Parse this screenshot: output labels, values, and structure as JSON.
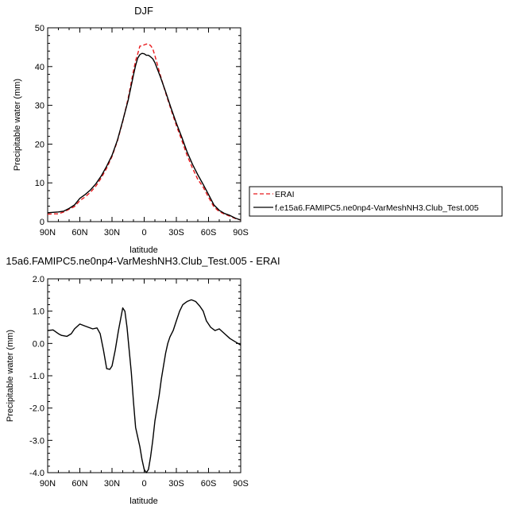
{
  "chart_data": [
    {
      "type": "line",
      "title": "DJF",
      "xlabel": "latitude",
      "ylabel": "Precipitable water (mm)",
      "x_ticks": [
        "90N",
        "60N",
        "30N",
        "0",
        "30S",
        "60S",
        "90S"
      ],
      "y_ticks": [
        "0",
        "10",
        "20",
        "30",
        "40",
        "50"
      ],
      "xlim": [
        90,
        -90
      ],
      "ylim": [
        0,
        50
      ],
      "grid": false,
      "legend": "right",
      "x": [
        90,
        85,
        80,
        75,
        70,
        65,
        60,
        55,
        50,
        45,
        40,
        35,
        30,
        25,
        20,
        15,
        10,
        8,
        6,
        4,
        2,
        0,
        -2,
        -4,
        -6,
        -8,
        -10,
        -15,
        -20,
        -25,
        -30,
        -35,
        -40,
        -45,
        -50,
        -55,
        -60,
        -65,
        -70,
        -75,
        -80,
        -85,
        -90
      ],
      "series": [
        {
          "name": "ERAI",
          "color": "#e8191c",
          "dash": true,
          "values": [
            1.9,
            2.0,
            2.0,
            2.5,
            3.2,
            3.9,
            5.4,
            6.4,
            7.6,
            9.2,
            11.3,
            13.8,
            16.8,
            20.8,
            25.8,
            31.8,
            38.9,
            41.5,
            43.3,
            45.3,
            45.3,
            45.6,
            45.8,
            45.8,
            45.4,
            44.6,
            42.8,
            37.8,
            33.2,
            28.9,
            24.8,
            21.0,
            17.1,
            13.8,
            10.9,
            8.9,
            6.3,
            3.8,
            2.6,
            1.9,
            1.4,
            0.8,
            0.4
          ]
        },
        {
          "name": "f.e15a6.FAMIPC5.ne0np4-VarMeshNH3.Club_Test.005",
          "color": "#000000",
          "dash": false,
          "values": [
            2.3,
            2.4,
            2.5,
            2.7,
            3.4,
            4.3,
            6.0,
            7.0,
            8.2,
            9.8,
            11.8,
            14.3,
            17.1,
            21.0,
            26.0,
            31.3,
            37.8,
            40.3,
            42.2,
            43.1,
            43.4,
            43.3,
            42.9,
            42.9,
            42.5,
            42.0,
            41.0,
            37.4,
            33.5,
            29.3,
            25.4,
            21.8,
            18.0,
            14.8,
            12.1,
            9.6,
            7.0,
            4.3,
            2.9,
            2.1,
            1.6,
            0.9,
            0.4
          ]
        }
      ]
    },
    {
      "type": "line",
      "title": "15a6.FAMIPC5.ne0np4-VarMeshNH3.Club_Test.005 - ERAI",
      "xlabel": "latitude",
      "ylabel": "Precipitable water (mm)",
      "x_ticks": [
        "90N",
        "60N",
        "30N",
        "0",
        "30S",
        "60S",
        "90S"
      ],
      "y_ticks": [
        "-4.0",
        "-3.0",
        "-2.0",
        "-1.0",
        "0.0",
        "1.0",
        "2.0"
      ],
      "xlim": [
        90,
        -90
      ],
      "ylim": [
        -4,
        2
      ],
      "grid": false,
      "legend": "none",
      "x": [
        90,
        85,
        80,
        77,
        72,
        68,
        65,
        60,
        56,
        52,
        48,
        44,
        41,
        38,
        35,
        32,
        30,
        27,
        24,
        20,
        18,
        16,
        14,
        12,
        10,
        8,
        6,
        4,
        2,
        0,
        -2,
        -4,
        -6,
        -8,
        -10,
        -12,
        -14,
        -16,
        -18,
        -20,
        -22,
        -24,
        -27,
        -30,
        -33,
        -36,
        -40,
        -44,
        -48,
        -52,
        -55,
        -58,
        -62,
        -66,
        -70,
        -75,
        -80,
        -85,
        -90
      ],
      "series": [
        {
          "name": "",
          "color": "#000000",
          "dash": false,
          "values": [
            0.4,
            0.42,
            0.3,
            0.25,
            0.22,
            0.3,
            0.45,
            0.6,
            0.55,
            0.5,
            0.45,
            0.48,
            0.3,
            -0.2,
            -0.78,
            -0.8,
            -0.7,
            -0.2,
            0.4,
            1.1,
            1.0,
            0.5,
            -0.2,
            -0.9,
            -1.8,
            -2.6,
            -2.9,
            -3.2,
            -3.6,
            -3.9,
            -4.0,
            -3.9,
            -3.5,
            -3.0,
            -2.4,
            -2.0,
            -1.6,
            -1.1,
            -0.7,
            -0.3,
            0.0,
            0.2,
            0.4,
            0.7,
            1.0,
            1.2,
            1.3,
            1.35,
            1.3,
            1.15,
            1.0,
            0.7,
            0.5,
            0.4,
            0.45,
            0.3,
            0.15,
            0.05,
            -0.05
          ]
        }
      ]
    }
  ]
}
